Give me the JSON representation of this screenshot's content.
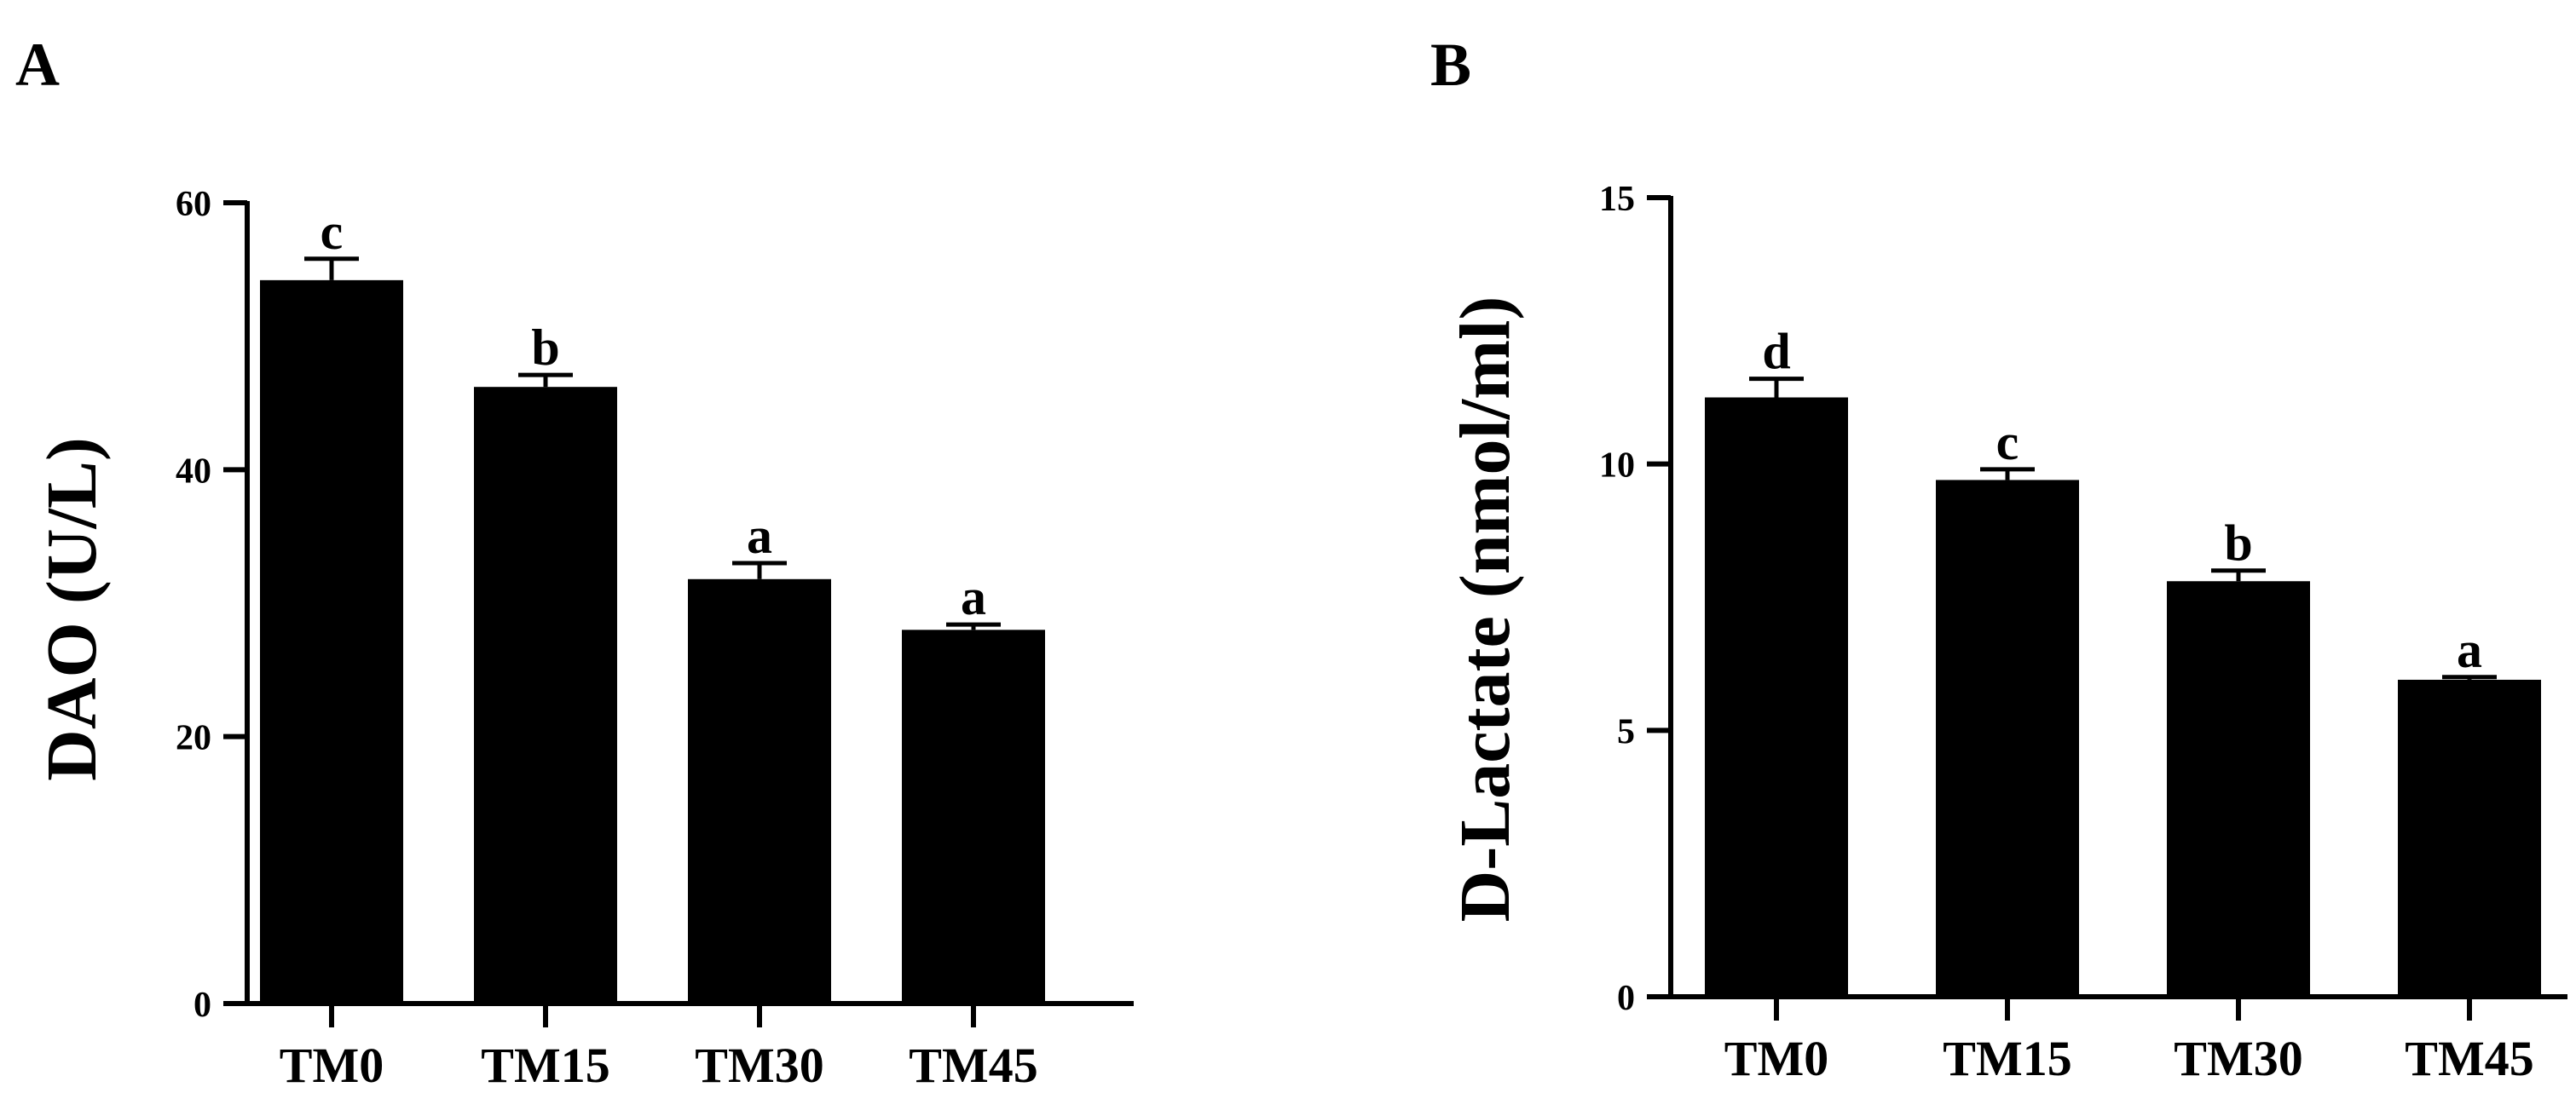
{
  "figure": {
    "colors": {
      "bar": "#000000",
      "axis": "#000000",
      "background": "#ffffff"
    }
  },
  "chart_data": [
    {
      "type": "bar",
      "panel_label": "A",
      "title": "",
      "xlabel": "",
      "ylabel": "DAO (U/L)",
      "categories": [
        "TM0",
        "TM15",
        "TM30",
        "TM45"
      ],
      "values": [
        54.2,
        46.2,
        31.8,
        28.0
      ],
      "errors": [
        1.6,
        0.9,
        1.2,
        0.4
      ],
      "significance": [
        "c",
        "b",
        "a",
        "a"
      ],
      "ylim": [
        0,
        60
      ],
      "yticks": [
        0,
        20,
        40,
        60
      ],
      "grid": false,
      "legend": "none"
    },
    {
      "type": "bar",
      "panel_label": "B",
      "title": "",
      "xlabel": "",
      "ylabel": "D-Lactate (nmol/ml)",
      "categories": [
        "TM0",
        "TM15",
        "TM30",
        "TM45"
      ],
      "values": [
        11.25,
        9.7,
        7.8,
        5.95
      ],
      "errors": [
        0.35,
        0.2,
        0.2,
        0.05
      ],
      "significance": [
        "d",
        "c",
        "b",
        "a"
      ],
      "ylim": [
        0,
        15
      ],
      "yticks": [
        0,
        5,
        10,
        15
      ],
      "grid": false,
      "legend": "none"
    }
  ]
}
